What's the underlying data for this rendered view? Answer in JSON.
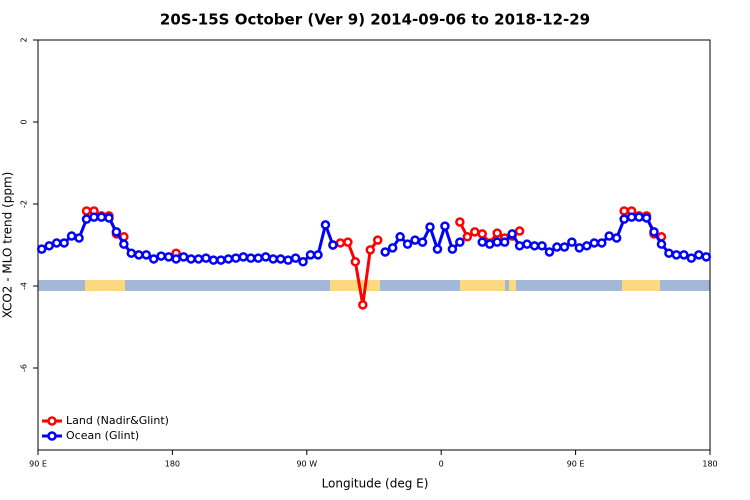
{
  "chart_data": {
    "type": "line",
    "title": "20S-15S October (Ver 9)   2014-09-06 to 2018-12-29",
    "xlabel": "Longitude (deg E)",
    "ylabel": "XCO2 - MLO trend (ppm)",
    "x": [
      92.5,
      97.5,
      102.5,
      107.5,
      112.5,
      117.5,
      122.5,
      127.5,
      132.5,
      137.5,
      142.5,
      147.5,
      152.5,
      157.5,
      162.5,
      167.5,
      172.5,
      177.5,
      182.5,
      187.5,
      192.5,
      197.5,
      202.5,
      207.5,
      212.5,
      217.5,
      222.5,
      227.5,
      232.5,
      237.5,
      242.5,
      247.5,
      252.5,
      257.5,
      262.5,
      267.5,
      272.5,
      277.5,
      282.5,
      287.5,
      292.5,
      297.5,
      302.5,
      307.5,
      312.5,
      317.5,
      322.5,
      327.5,
      332.5,
      337.5,
      342.5,
      347.5,
      352.5,
      357.5,
      362.5,
      367.5,
      372.5,
      377.5,
      382.5,
      387.5,
      392.5,
      397.5,
      402.5,
      407.5,
      412.5,
      417.5,
      422.5,
      427.5,
      432.5,
      437.5,
      442.5,
      447.5,
      452.5,
      457.5,
      462.5,
      467.5,
      472.5,
      477.5,
      482.5,
      487.5,
      492.5,
      497.5,
      502.5,
      507.5,
      512.5,
      517.5,
      522.5,
      527.5,
      532.5,
      537.5
    ],
    "series": [
      {
        "name": "Land (Nadir&Glint)",
        "color": "#ff0000",
        "values": [
          null,
          null,
          null,
          null,
          null,
          null,
          -2.17,
          -2.17,
          -2.29,
          -2.29,
          -2.73,
          -2.8,
          null,
          null,
          null,
          null,
          null,
          null,
          -3.2,
          null,
          null,
          null,
          null,
          null,
          null,
          null,
          null,
          null,
          null,
          null,
          null,
          null,
          null,
          null,
          null,
          null,
          null,
          null,
          null,
          -3.0,
          -2.95,
          -2.93,
          -3.41,
          -4.46,
          -3.12,
          -2.88,
          null,
          null,
          null,
          null,
          null,
          null,
          null,
          null,
          null,
          null,
          -2.44,
          -2.8,
          -2.68,
          -2.73,
          -2.95,
          -2.71,
          -2.83,
          -2.78,
          -2.66,
          null,
          null,
          null,
          null,
          null,
          null,
          null,
          null,
          null,
          null,
          null,
          null,
          null,
          -2.17,
          -2.17,
          -2.29,
          -2.29,
          -2.73,
          -2.8,
          null,
          null,
          null,
          null,
          null,
          null
        ]
      },
      {
        "name": "Ocean (Glint)",
        "color": "#0000ff",
        "values": [
          -3.1,
          -3.02,
          -2.95,
          -2.95,
          -2.78,
          -2.83,
          -2.37,
          -2.32,
          -2.32,
          -2.34,
          -2.68,
          -2.98,
          -3.2,
          -3.24,
          -3.24,
          -3.34,
          -3.27,
          -3.29,
          -3.34,
          -3.29,
          -3.34,
          -3.34,
          -3.32,
          -3.37,
          -3.37,
          -3.34,
          -3.32,
          -3.29,
          -3.32,
          -3.32,
          -3.29,
          -3.34,
          -3.34,
          -3.37,
          -3.32,
          -3.41,
          -3.24,
          -3.24,
          -2.51,
          -3.0,
          null,
          null,
          null,
          null,
          null,
          null,
          -3.17,
          -3.07,
          -2.8,
          -2.98,
          -2.88,
          -2.93,
          -2.56,
          -3.1,
          -2.54,
          -3.1,
          -2.93,
          null,
          null,
          -2.93,
          -2.98,
          -2.93,
          -2.93,
          -2.73,
          -3.02,
          -2.98,
          -3.02,
          -3.02,
          -3.17,
          -3.05,
          -3.05,
          -2.93,
          -3.07,
          -3.02,
          -2.95,
          -2.95,
          -2.78,
          -2.83,
          -2.37,
          -2.32,
          -2.32,
          -2.34,
          -2.68,
          -2.98,
          -3.2,
          -3.24,
          -3.24,
          -3.32,
          -3.24,
          -3.29
        ]
      }
    ],
    "xlim": [
      90,
      540
    ],
    "xticks": [
      {
        "value": 90,
        "label": "90 E"
      },
      {
        "value": 180,
        "label": "180"
      },
      {
        "value": 270,
        "label": "90 W"
      },
      {
        "value": 360,
        "label": "0"
      },
      {
        "value": 450,
        "label": "90 E"
      },
      {
        "value": 540,
        "label": "180"
      }
    ],
    "ylim": [
      -8,
      2
    ],
    "yticks": [
      2,
      0,
      -2,
      -4,
      -6
    ],
    "legend": "bottom-left"
  }
}
